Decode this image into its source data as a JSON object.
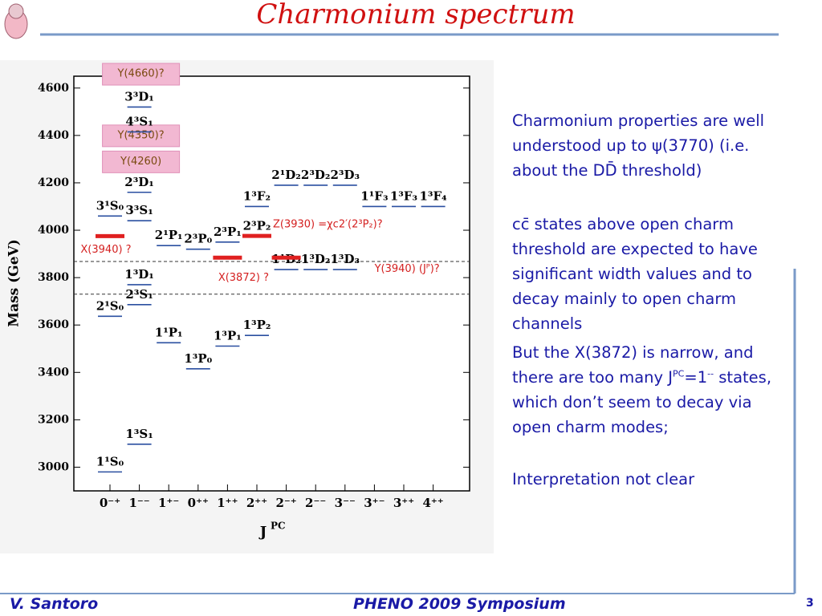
{
  "slide": {
    "title": "Charmonium spectrum",
    "footer_left": "V. Santoro",
    "footer_center": "PHENO 2009 Symposium",
    "page_number": "3"
  },
  "chart": {
    "type": "level",
    "y_label": "Mass (GeV)",
    "x_label": "J",
    "x_label_sup": "PC",
    "ylim": [
      2900,
      4650
    ],
    "yticks": [
      3000,
      3200,
      3400,
      3600,
      3800,
      4000,
      4200,
      4400,
      4600
    ],
    "categories": [
      "0⁻⁺",
      "1⁻⁻",
      "1⁺⁻",
      "0⁺⁺",
      "1⁺⁺",
      "2⁺⁺",
      "2⁻⁺",
      "2⁻⁻",
      "3⁻⁻",
      "3⁺⁻",
      "3⁺⁺",
      "4⁺⁺"
    ],
    "thresholds": [
      3868,
      3730
    ],
    "states": [
      {
        "label": "1¹S₀",
        "category": 0,
        "mass": 2980
      },
      {
        "label": "1³S₁",
        "category": 1,
        "mass": 3097
      },
      {
        "label": "1¹P₁",
        "category": 2,
        "mass": 3525
      },
      {
        "label": "1³P₀",
        "category": 3,
        "mass": 3415
      },
      {
        "label": "1³P₁",
        "category": 4,
        "mass": 3511
      },
      {
        "label": "1³P₂",
        "category": 5,
        "mass": 3556
      },
      {
        "label": "2¹S₀",
        "category": 0,
        "mass": 3637
      },
      {
        "label": "2³S₁",
        "category": 1,
        "mass": 3686
      },
      {
        "label": "1³D₁",
        "category": 1,
        "mass": 3770
      },
      {
        "label": "1¹D₂",
        "category": 6,
        "mass": 3834
      },
      {
        "label": "1³D₂",
        "category": 7,
        "mass": 3834
      },
      {
        "label": "1³D₃",
        "category": 8,
        "mass": 3834
      },
      {
        "label": "2¹P₁",
        "category": 2,
        "mass": 3935
      },
      {
        "label": "2³P₀",
        "category": 3,
        "mass": 3920
      },
      {
        "label": "2³P₁",
        "category": 4,
        "mass": 3950
      },
      {
        "label": "2³P₂",
        "category": 5,
        "mass": 3975
      },
      {
        "label": "3¹S₀",
        "category": 0,
        "mass": 4060
      },
      {
        "label": "3³S₁",
        "category": 1,
        "mass": 4040
      },
      {
        "label": "1³F₂",
        "category": 5,
        "mass": 4100
      },
      {
        "label": "2¹D₂",
        "category": 6,
        "mass": 4190
      },
      {
        "label": "2³D₂",
        "category": 7,
        "mass": 4190
      },
      {
        "label": "2³D₃",
        "category": 8,
        "mass": 4190
      },
      {
        "label": "1¹F₃",
        "category": 9,
        "mass": 4100
      },
      {
        "label": "1³F₃",
        "category": 10,
        "mass": 4100
      },
      {
        "label": "1³F₄",
        "category": 11,
        "mass": 4100
      },
      {
        "label": "2³D₁",
        "category": 1,
        "mass": 4160
      },
      {
        "label": "4³S₁",
        "category": 1,
        "mass": 4415
      },
      {
        "label": "3³D₁",
        "category": 1,
        "mass": 4520
      }
    ],
    "exotics": [
      {
        "label": "X(3940) ?",
        "category": 0,
        "mass": 3975
      },
      {
        "label": "X(3872) ?",
        "category": 4,
        "mass": 3884
      },
      {
        "label": "Z(3930) =χc2′(2³P₂)?",
        "category": 5,
        "mass": 3976
      },
      {
        "label": "Y(3940)  (Jᴾ)?",
        "category": 6,
        "mass": 3884
      }
    ],
    "boxed": [
      {
        "label": "Y(4660)?",
        "category": 1,
        "mass": 4660
      },
      {
        "label": "Y(4350)?",
        "category": 1,
        "mass": 4400
      },
      {
        "label": "Y(4260)",
        "category": 1,
        "mass": 4290
      }
    ]
  },
  "text": {
    "paragraphs": [
      [
        "Charmonium properties are well understood up to ψ(3770) (i.e. about the DD̄ threshold)"
      ],
      [
        "cc̄ states above open charm threshold are expected to have significant width values and to decay mainly to open charm channels"
      ],
      [
        "But the X(3872) is narrow, and there are too many J",
        {
          "sup": "PC"
        },
        "=1",
        {
          "sup": "--"
        },
        " states, which don’t seem to decay via open charm modes;"
      ],
      [
        "Interpretation not clear"
      ]
    ]
  }
}
